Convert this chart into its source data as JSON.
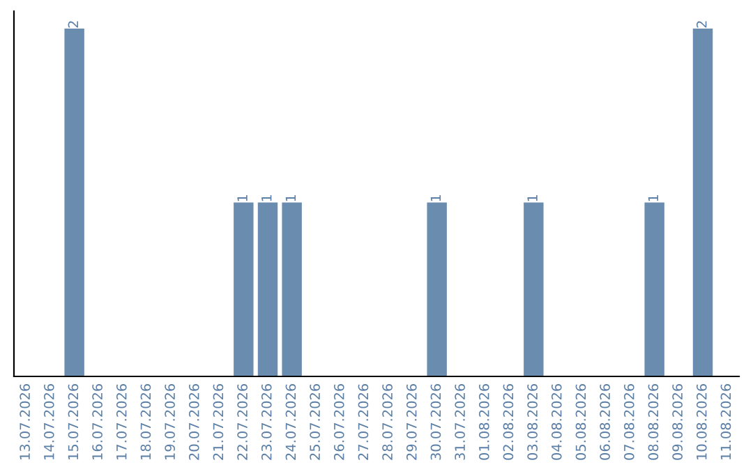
{
  "chart_data": {
    "type": "bar",
    "categories": [
      "13.07.2026",
      "14.07.2026",
      "15.07.2026",
      "16.07.2026",
      "17.07.2026",
      "18.07.2026",
      "19.07.2026",
      "20.07.2026",
      "21.07.2026",
      "22.07.2026",
      "23.07.2026",
      "24.07.2026",
      "25.07.2026",
      "26.07.2026",
      "27.07.2026",
      "28.07.2026",
      "29.07.2026",
      "30.07.2026",
      "31.07.2026",
      "01.08.2026",
      "02.08.2026",
      "03.08.2026",
      "04.08.2026",
      "05.08.2026",
      "06.08.2026",
      "07.08.2026",
      "08.08.2026",
      "09.08.2026",
      "10.08.2026",
      "11.08.2026"
    ],
    "values": [
      0,
      0,
      2,
      0,
      0,
      0,
      0,
      0,
      0,
      1,
      1,
      1,
      0,
      0,
      0,
      0,
      0,
      1,
      0,
      0,
      0,
      1,
      0,
      0,
      0,
      0,
      1,
      0,
      2,
      0
    ],
    "value_labels": [
      null,
      null,
      "2",
      null,
      null,
      null,
      null,
      null,
      null,
      "1",
      "1",
      "1",
      null,
      null,
      null,
      null,
      null,
      "1",
      null,
      null,
      null,
      "1",
      null,
      null,
      null,
      null,
      "1",
      null,
      "2",
      null
    ],
    "color": "#6a8caf",
    "tick_labels": "x",
    "grid": false,
    "legend": false
  }
}
